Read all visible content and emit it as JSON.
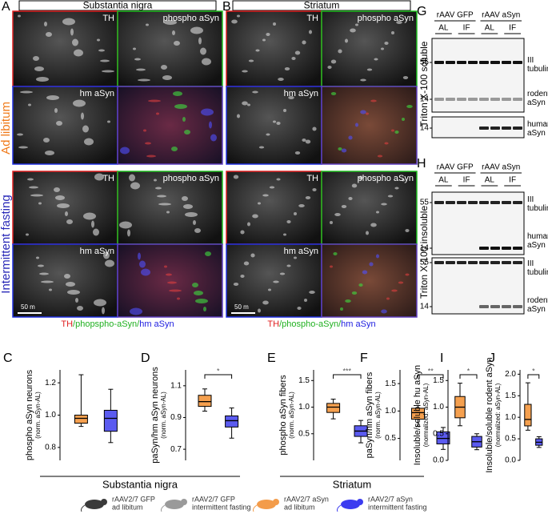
{
  "figure": {
    "panel_letters": [
      "A",
      "B",
      "C",
      "D",
      "E",
      "F",
      "G",
      "H",
      "I",
      "J"
    ],
    "conditions": [
      {
        "label": "Ad libitum",
        "color": "#f07a1a"
      },
      {
        "label": "Intermittent fasting",
        "color": "#2a2ab8"
      }
    ],
    "microscopy": [
      {
        "title": "Substantia nigra",
        "channels": [
          "TH",
          "phospho aSyn",
          "hm aSyn"
        ],
        "caption": [
          "TH",
          "/phopspho-aSyn/",
          "hm aSyn"
        ],
        "scale_bar": "50 m"
      },
      {
        "title": "Striatum",
        "channels": [
          "TH",
          "phospho aSyn",
          "hm aSyn"
        ],
        "caption": [
          "TH",
          "/phospho-aSyn/",
          "hm aSyn"
        ],
        "scale_bar": "50 m"
      }
    ],
    "blots": [
      {
        "fraction": "Triton X-100 soluble",
        "groups": [
          "rAAV GFP",
          "rAAV aSyn"
        ],
        "lanes": [
          "AL",
          "IF",
          "AL",
          "IF"
        ],
        "markers": [
          "55",
          "14",
          "14"
        ],
        "bands": [
          [
            "III",
            "tubulin"
          ],
          [
            "rodent",
            "aSyn"
          ],
          [
            "human",
            "aSyn"
          ]
        ]
      },
      {
        "fraction": "Triton X-100 insoluble",
        "groups": [
          "rAAV GFP",
          "rAAV aSyn"
        ],
        "lanes": [
          "AL",
          "IF",
          "AL",
          "IF"
        ],
        "markers": [
          "55",
          "14",
          "55",
          "14"
        ],
        "bands": [
          [
            "III",
            "tubulin"
          ],
          [
            "human",
            "aSyn"
          ],
          [
            "III",
            "tubulin"
          ],
          [
            "rodent",
            "aSyn"
          ]
        ]
      }
    ],
    "plots": [
      {
        "ylabel": "phospho aSyn neurons",
        "sublabel": "(norm. aSyn-AL)",
        "ylim": [
          0.72,
          1.28
        ],
        "yticks": [
          0.8,
          {
            "value": 1,
            "label": "1.0"
          },
          1.2
        ],
        "significance": null,
        "boxes": [
          {
            "color": "#f5a04f",
            "stats": [
              0.93,
              0.95,
              0.98,
              1.0,
              1.25
            ]
          },
          {
            "color": "#5b5bf0",
            "stats": [
              0.83,
              0.9,
              0.98,
              1.03,
              1.16
            ]
          }
        ]
      },
      {
        "ylabel": "paSyn/hm aSyn neurons",
        "sublabel": "(norm. aSyn-AL)",
        "ylim": [
          0.63,
          1.2
        ],
        "yticks": [
          0.7,
          0.9,
          1.1
        ],
        "significance": "*",
        "boxes": [
          {
            "color": "#f5a04f",
            "stats": [
              0.94,
              0.97,
              1.0,
              1.04,
              1.08
            ]
          },
          {
            "color": "#5b5bf0",
            "stats": [
              0.77,
              0.84,
              0.88,
              0.91,
              0.96
            ]
          }
        ]
      },
      {
        "ylabel": "phospho aSyn fibers",
        "sublabel": "(norm. aSyn-AL)",
        "ylim": [
          0,
          1.7
        ],
        "yticks": [
          0.5,
          {
            "value": 1,
            "label": "1.0"
          },
          1.5
        ],
        "significance": "***",
        "boxes": [
          {
            "color": "#f5a04f",
            "stats": [
              0.78,
              0.9,
              1.0,
              1.07,
              1.15
            ]
          },
          {
            "color": "#5b5bf0",
            "stats": [
              0.33,
              0.45,
              0.55,
              0.65,
              0.75
            ]
          }
        ]
      },
      {
        "ylabel": "paSyn/hm aSyn fibers",
        "sublabel": "(norm. aSyn-AL)",
        "ylim": [
          0.1,
          1.75
        ],
        "yticks": [
          0.5,
          {
            "value": 1,
            "label": "1.0"
          },
          1.5
        ],
        "significance": "**",
        "boxes": [
          {
            "color": "#f5a04f",
            "stats": [
              0.72,
              0.85,
              0.97,
              1.05,
              1.1
            ]
          },
          {
            "color": "#5b5bf0",
            "stats": [
              0.3,
              0.4,
              0.5,
              0.62,
              0.7
            ]
          }
        ]
      },
      {
        "ylabel": "Insoluble/soluble hu aSyn",
        "sublabel": "(normalized: aSyn-AL)",
        "ylim": [
          0,
          1.7
        ],
        "yticks": [
          {
            "value": 0,
            "label": "0.0"
          },
          0.5,
          {
            "value": 1,
            "label": "1.0"
          },
          1.5
        ],
        "significance": "*",
        "boxes": [
          {
            "color": "#f5a04f",
            "stats": [
              0.65,
              0.8,
              1.0,
              1.2,
              1.45
            ]
          },
          {
            "color": "#5b5bf0",
            "stats": [
              0.2,
              0.25,
              0.35,
              0.45,
              0.5
            ]
          }
        ]
      },
      {
        "ylabel": "Insoluble/soluble rodent aSyn",
        "sublabel": "(normalized: aSyn-AL)",
        "ylim": [
          0,
          2.1
        ],
        "yticks": [
          {
            "value": 0,
            "label": "0.0"
          },
          0.5,
          {
            "value": 1,
            "label": "1.0"
          },
          1.5,
          {
            "value": 2,
            "label": "2.0"
          }
        ],
        "significance": "*",
        "boxes": [
          {
            "color": "#f5a04f",
            "stats": [
              0.7,
              0.8,
              0.95,
              1.3,
              1.8
            ]
          },
          {
            "color": "#5b5bf0",
            "stats": [
              0.3,
              0.35,
              0.42,
              0.5,
              0.55
            ]
          }
        ]
      }
    ],
    "regions": [
      "Substantia nigra",
      "Striatum"
    ],
    "legend": [
      {
        "lines": [
          "rAAV2/7 GFP",
          "ad libitum"
        ],
        "color": "#3a3a3a"
      },
      {
        "lines": [
          "rAAV2/7 GFP",
          "intermittent fasting"
        ],
        "color": "#9a9a9a"
      },
      {
        "lines": [
          "rAAV2/7 aSyn",
          "ad libitum"
        ],
        "color": "#f39c4a"
      },
      {
        "lines": [
          "rAAV2/7 aSyn",
          "intermittent fasting"
        ],
        "color": "#3c3cf0"
      }
    ]
  }
}
